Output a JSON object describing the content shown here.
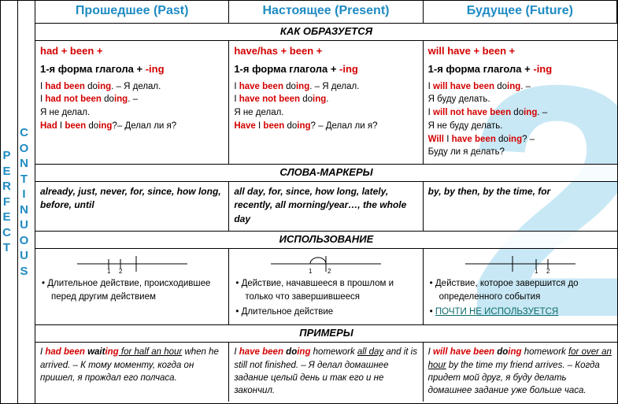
{
  "sideLabel1": "PERFECT",
  "sideLabel2": "CONTINUOUS",
  "headers": {
    "past": "Прошедшее (Past)",
    "present": "Настоящее (Present)",
    "future": "Будущее (Future)"
  },
  "sections": {
    "formation": "КАК ОБРАЗУЕТСЯ",
    "markers": "СЛОВА-МАРКЕРЫ",
    "usage": "ИСПОЛЬЗОВАНИЕ",
    "examples": "ПРИМЕРЫ"
  },
  "formation": {
    "past": {
      "aux": "had + been +",
      "base": "1-я форма глагола + ",
      "ing": "-ing",
      "lines": [
        {
          "pre": "I ",
          "red": "had been",
          "mid": " do",
          "red2": "ing",
          "post": ". – Я делал."
        },
        {
          "pre": "I ",
          "red": "had not been",
          "mid": " do",
          "red2": "ing",
          "post": ". –"
        },
        {
          "plain": "Я не делал."
        },
        {
          "pre": "",
          "red": "Had",
          "mid": " I ",
          "red2": "been",
          "mid2": " do",
          "red3": "ing",
          "post": "?– Делал ли я?"
        }
      ]
    },
    "present": {
      "aux": "have/has + been +",
      "base": "1-я форма глагола + ",
      "ing": "-ing",
      "lines": [
        {
          "pre": "I ",
          "red": "have been",
          "mid": " do",
          "red2": "ing",
          "post": ". – Я делал."
        },
        {
          "pre": "I ",
          "red": "have not been",
          "mid": " do",
          "red2": "ing",
          "post": "."
        },
        {
          "plain": "Я не делал."
        },
        {
          "pre": "",
          "red": "Have",
          "mid": " I ",
          "red2": "been",
          "mid2": " do",
          "red3": "ing",
          "post": "? – Делал ли я?"
        }
      ]
    },
    "future": {
      "aux": "will have + been +",
      "base": "1-я форма глагола + ",
      "ing": "-ing",
      "lines": [
        {
          "pre": "I ",
          "red": "will have been",
          "mid": " do",
          "red2": "ing",
          "post": ". –"
        },
        {
          "plain": "Я буду делать."
        },
        {
          "pre": "I ",
          "red": "will not have been",
          "mid": " do",
          "red2": "ing",
          "post": ". –"
        },
        {
          "plain": "Я не буду делать."
        },
        {
          "pre": "",
          "red": "Will",
          "mid": " I ",
          "red2": "have been",
          "mid2": " do",
          "red3": "ing",
          "post": "? –"
        },
        {
          "plain": "Буду ли я делать?"
        }
      ]
    }
  },
  "markers": {
    "past": "already, just, never, for, since, how long, before, until",
    "present": "all day, for, since, how long, lately, recently, all morning/year…, the whole day",
    "future": "by, by then, by the time, for"
  },
  "usage": {
    "past": [
      "Длительное действие, происходившее перед другим действием"
    ],
    "present": [
      "Действие, начавшееся в прошлом и только что завершившееся",
      "Длительное действие"
    ],
    "future": [
      "Действие, которое завершится до определенного события"
    ],
    "futureWarn": "ПОЧТИ НЕ ИСПОЛЬЗУЕТСЯ"
  },
  "examples": {
    "past": {
      "t1": "I ",
      "red": "had been",
      "t2": " wait",
      "red2": "ing",
      "u": " for half an hour",
      "t3": " when he arrived. – К тому моменту, когда он пришел, я прождал его полчаса."
    },
    "present": {
      "t1": "I ",
      "red": "have been",
      "t2": " do",
      "red2": "ing",
      "t3": " homework ",
      "u": "all day",
      "t4": " and it is still not finished. – Я делал домашнее задание целый день и так его и не закончил."
    },
    "future": {
      "t1": "I ",
      "red": "will have been",
      "t2": " do",
      "red2": "ing",
      "t3": " homework ",
      "u": "for over an hour",
      "t4": " by the time my friend arrives. – Когда придет мой друг, я буду делать домашнее задание уже больше часа."
    }
  },
  "colors": {
    "headerBlue": "#1e8bc3",
    "red": "#d40000",
    "watermark": "#c9e8f5",
    "tealUnderline": "#0c6b6b"
  }
}
